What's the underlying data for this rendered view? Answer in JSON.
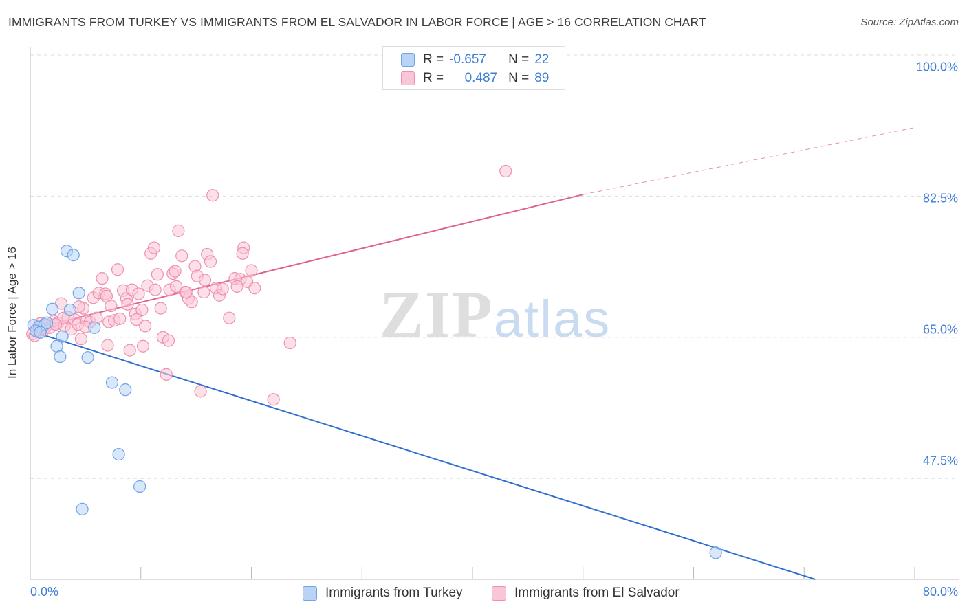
{
  "title": "IMMIGRANTS FROM TURKEY VS IMMIGRANTS FROM EL SALVADOR IN LABOR FORCE | AGE > 16 CORRELATION CHART",
  "source": "Source: ZipAtlas.com",
  "watermark": "ZIPatlas",
  "colors": {
    "turkey": "#6fa3e8",
    "turkey_fill": "#b9d3f5",
    "turkey_line": "#2f6fd0",
    "elsalvador": "#ef8fb0",
    "elsalvador_fill": "#f9c6d6",
    "elsalvador_line": "#e0608e",
    "tick_text": "#3f7dd6",
    "grid": "#dddddd"
  },
  "legend": {
    "rows": [
      {
        "r_label": "R =",
        "r_value": "-0.657",
        "n_label": "N =",
        "n_value": "22"
      },
      {
        "r_label": "R =",
        "r_value": "0.487",
        "n_label": "N =",
        "n_value": "89"
      }
    ]
  },
  "chart_data": {
    "type": "scatter",
    "title": "IMMIGRANTS FROM TURKEY VS IMMIGRANTS FROM EL SALVADOR IN LABOR FORCE | AGE > 16 CORRELATION CHART",
    "xlabel": "",
    "ylabel": "In Labor Force | Age > 16",
    "xlim": [
      0,
      80
    ],
    "ylim": [
      35,
      100
    ],
    "x_tick_labels": [
      "0.0%",
      "80.0%"
    ],
    "y_ticks": [
      {
        "value": 100,
        "label": "100.0%"
      },
      {
        "value": 82.5,
        "label": "82.5%"
      },
      {
        "value": 65,
        "label": "65.0%"
      },
      {
        "value": 47.5,
        "label": "47.5%"
      }
    ],
    "grid": true,
    "legend_position": "top-center",
    "series": [
      {
        "name": "Immigrants from Turkey",
        "r": -0.657,
        "n": 22,
        "trend": {
          "x0": 0,
          "y0": 65.8,
          "x1": 71,
          "y1": 35
        },
        "points": [
          [
            0.3,
            66.5
          ],
          [
            0.8,
            66.3
          ],
          [
            1.3,
            66.6
          ],
          [
            0.5,
            65.8
          ],
          [
            2.0,
            68.5
          ],
          [
            1.5,
            66.8
          ],
          [
            3.3,
            75.7
          ],
          [
            3.9,
            75.2
          ],
          [
            4.4,
            70.5
          ],
          [
            3.6,
            68.4
          ],
          [
            2.9,
            65.1
          ],
          [
            2.4,
            63.9
          ],
          [
            2.7,
            62.6
          ],
          [
            5.2,
            62.5
          ],
          [
            5.8,
            66.2
          ],
          [
            7.4,
            59.4
          ],
          [
            8.6,
            58.5
          ],
          [
            8.0,
            50.5
          ],
          [
            9.9,
            46.5
          ],
          [
            4.7,
            43.7
          ],
          [
            62.0,
            38.3
          ],
          [
            0.9,
            65.6
          ]
        ]
      },
      {
        "name": "Immigrants from El Salvador",
        "r": 0.487,
        "n": 89,
        "trend": {
          "x0": 0,
          "y0": 66.0,
          "x1": 50,
          "y1": 82.7
        },
        "trend_extended": {
          "x0": 50,
          "y0": 82.7,
          "x1": 80,
          "y1": 91.0
        },
        "points": [
          [
            0.2,
            65.4
          ],
          [
            0.6,
            66.0
          ],
          [
            0.9,
            66.7
          ],
          [
            1.2,
            65.9
          ],
          [
            1.5,
            66.5
          ],
          [
            1.8,
            66.2
          ],
          [
            2.1,
            67.0
          ],
          [
            2.5,
            66.8
          ],
          [
            2.8,
            69.2
          ],
          [
            3.1,
            66.4
          ],
          [
            3.4,
            67.5
          ],
          [
            3.7,
            66.0
          ],
          [
            4.0,
            67.2
          ],
          [
            4.3,
            66.6
          ],
          [
            4.6,
            64.8
          ],
          [
            4.8,
            68.6
          ],
          [
            5.1,
            67.1
          ],
          [
            5.4,
            66.9
          ],
          [
            5.7,
            69.9
          ],
          [
            6.0,
            67.4
          ],
          [
            6.2,
            70.5
          ],
          [
            6.5,
            72.3
          ],
          [
            6.8,
            70.4
          ],
          [
            7.1,
            66.9
          ],
          [
            7.3,
            68.9
          ],
          [
            7.6,
            67.1
          ],
          [
            7.9,
            73.4
          ],
          [
            8.1,
            67.3
          ],
          [
            8.4,
            70.8
          ],
          [
            8.7,
            69.8
          ],
          [
            9.0,
            63.4
          ],
          [
            9.2,
            70.9
          ],
          [
            9.5,
            67.9
          ],
          [
            9.8,
            70.4
          ],
          [
            10.1,
            68.4
          ],
          [
            10.4,
            66.4
          ],
          [
            10.6,
            71.4
          ],
          [
            10.9,
            75.4
          ],
          [
            11.2,
            76.1
          ],
          [
            11.5,
            72.8
          ],
          [
            11.8,
            68.6
          ],
          [
            12.0,
            65.0
          ],
          [
            12.3,
            60.4
          ],
          [
            12.6,
            70.9
          ],
          [
            12.9,
            72.9
          ],
          [
            13.1,
            73.2
          ],
          [
            13.4,
            78.2
          ],
          [
            13.7,
            75.1
          ],
          [
            14.0,
            70.6
          ],
          [
            14.3,
            69.8
          ],
          [
            14.6,
            69.4
          ],
          [
            14.9,
            73.8
          ],
          [
            15.1,
            72.6
          ],
          [
            15.4,
            58.3
          ],
          [
            15.7,
            70.6
          ],
          [
            16.0,
            75.3
          ],
          [
            16.3,
            74.4
          ],
          [
            16.5,
            82.6
          ],
          [
            16.8,
            71.1
          ],
          [
            17.1,
            70.2
          ],
          [
            17.4,
            71.0
          ],
          [
            18.0,
            67.4
          ],
          [
            18.5,
            72.3
          ],
          [
            19.0,
            72.2
          ],
          [
            19.3,
            76.1
          ],
          [
            19.6,
            71.9
          ],
          [
            20.0,
            73.3
          ],
          [
            20.3,
            71.1
          ],
          [
            22.0,
            57.3
          ],
          [
            23.5,
            64.3
          ],
          [
            43.0,
            85.6
          ],
          [
            7.0,
            64.0
          ],
          [
            3.0,
            67.4
          ],
          [
            5.0,
            66.3
          ],
          [
            9.6,
            67.2
          ],
          [
            11.3,
            70.9
          ],
          [
            13.2,
            71.3
          ],
          [
            14.1,
            70.6
          ],
          [
            18.7,
            71.3
          ],
          [
            6.9,
            70.1
          ],
          [
            4.4,
            68.8
          ],
          [
            2.3,
            66.6
          ],
          [
            1.0,
            66.1
          ],
          [
            0.4,
            65.2
          ],
          [
            12.5,
            64.6
          ],
          [
            10.2,
            63.9
          ],
          [
            8.8,
            69.1
          ],
          [
            15.8,
            72.1
          ],
          [
            19.2,
            75.4
          ]
        ]
      }
    ]
  },
  "bottom_legend": [
    "Immigrants from Turkey",
    "Immigrants from El Salvador"
  ]
}
